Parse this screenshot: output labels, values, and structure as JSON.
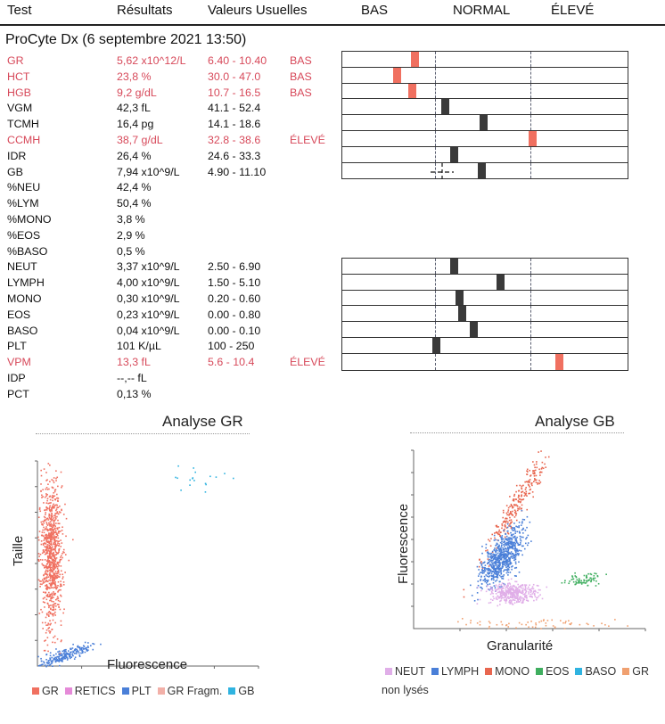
{
  "header": {
    "test": "Test",
    "results": "Résultats",
    "ranges": "Valeurs Usuelles",
    "low": "BAS",
    "normal": "NORMAL",
    "high": "ÉLEVÉ"
  },
  "device": "ProCyte Dx (6 septembre 2021 13:50)",
  "rows": [
    {
      "test": "GR",
      "result": "5,62 x10^12/L",
      "range": "6.40 - 10.40",
      "flag": "BAS",
      "gauge": 0.78,
      "abnormal": true
    },
    {
      "test": "HCT",
      "result": "23,8 %",
      "range": "30.0 - 47.0",
      "flag": "BAS",
      "gauge": 0.59,
      "abnormal": true
    },
    {
      "test": "HGB",
      "result": "9,2 g/dL",
      "range": "10.7 - 16.5",
      "flag": "BAS",
      "gauge": 0.75,
      "abnormal": true
    },
    {
      "test": "VGM",
      "result": "42,3 fL",
      "range": "41.1 - 52.4",
      "flag": "",
      "gauge": 1.1,
      "abnormal": false
    },
    {
      "test": "TCMH",
      "result": "16,4 pg",
      "range": "14.1 - 18.6",
      "flag": "",
      "gauge": 1.5,
      "abnormal": false
    },
    {
      "test": "CCMH",
      "result": "38,7 g/dL",
      "range": "32.8 - 38.6",
      "flag": "ÉLEVÉ",
      "gauge": 2.02,
      "abnormal": true
    },
    {
      "test": "IDR",
      "result": "26,4 %",
      "range": "24.6 - 33.3",
      "flag": "",
      "gauge": 1.2,
      "abnormal": false
    },
    {
      "test": "GB",
      "result": "7,94 x10^9/L",
      "range": "4.90 - 11.10",
      "flag": "",
      "gauge": 1.49,
      "abnormal": false
    },
    {
      "test": "%NEU",
      "result": "42,4 %",
      "range": "",
      "flag": ""
    },
    {
      "test": "%LYM",
      "result": "50,4 %",
      "range": "",
      "flag": ""
    },
    {
      "test": "%MONO",
      "result": "3,8 %",
      "range": "",
      "flag": ""
    },
    {
      "test": "%EOS",
      "result": "2,9 %",
      "range": "",
      "flag": ""
    },
    {
      "test": "%BASO",
      "result": "0,5 %",
      "range": "",
      "flag": ""
    },
    {
      "test": "NEUT",
      "result": "3,37 x10^9/L",
      "range": "2.50 - 6.90",
      "flag": "",
      "gauge": 1.2,
      "abnormal": false
    },
    {
      "test": "LYMPH",
      "result": "4,00 x10^9/L",
      "range": "1.50 - 5.10",
      "flag": "",
      "gauge": 1.68,
      "abnormal": false
    },
    {
      "test": "MONO",
      "result": "0,30 x10^9/L",
      "range": "0.20 - 0.60",
      "flag": "",
      "gauge": 1.25,
      "abnormal": false
    },
    {
      "test": "EOS",
      "result": "0,23 x10^9/L",
      "range": "0.00 - 0.80",
      "flag": "",
      "gauge": 1.28,
      "abnormal": false
    },
    {
      "test": "BASO",
      "result": "0,04 x10^9/L",
      "range": "0.00 - 0.10",
      "flag": "",
      "gauge": 1.4,
      "abnormal": false
    },
    {
      "test": "PLT",
      "result": "101 K/µL",
      "range": "100 - 250",
      "flag": "",
      "gauge": 1.01,
      "abnormal": false
    },
    {
      "test": "VPM",
      "result": "13,3 fL",
      "range": "5.6 - 10.4",
      "flag": "ÉLEVÉ",
      "gauge": 2.3,
      "abnormal": true
    },
    {
      "test": "IDP",
      "result": "--,--  fL",
      "range": "",
      "flag": ""
    },
    {
      "test": "PCT",
      "result": "0,13 %",
      "range": "",
      "flag": ""
    }
  ],
  "colors": {
    "abnormal_text": "#d7495a",
    "abnormal_mark": "#f07060",
    "normal_mark": "#3a3a3a"
  },
  "chart_data": [
    {
      "type": "scatter",
      "title": "Analyse GR",
      "xlabel": "Fluorescence",
      "ylabel": "Taille",
      "legend": [
        {
          "label": "GR",
          "color": "#f07060"
        },
        {
          "label": "RETICS",
          "color": "#e58ad8"
        },
        {
          "label": "PLT",
          "color": "#4a7fd8"
        },
        {
          "label": "GR Fragm.",
          "color": "#f2b0a8"
        },
        {
          "label": "GB",
          "color": "#2fb3e0"
        }
      ],
      "legend_position": "bottom",
      "clusters": [
        {
          "name": "GR",
          "color": "#f07060",
          "center": [
            0.06,
            0.55
          ],
          "spread": [
            0.025,
            0.18
          ],
          "n": 900
        },
        {
          "name": "PLT",
          "color": "#4a7fd8",
          "center": [
            0.12,
            0.06
          ],
          "spread": [
            0.06,
            0.03
          ],
          "n": 220
        },
        {
          "name": "GB",
          "color": "#2fb3e0",
          "center": [
            0.68,
            0.92
          ],
          "spread": [
            0.08,
            0.03
          ],
          "n": 18
        }
      ]
    },
    {
      "type": "scatter",
      "title": "Analyse GB",
      "xlabel": "Granularité",
      "ylabel": "Fluorescence",
      "legend": [
        {
          "label": "NEUT",
          "color": "#e0aee8"
        },
        {
          "label": "LYMPH",
          "color": "#4a7fd8"
        },
        {
          "label": "MONO",
          "color": "#e8664f"
        },
        {
          "label": "EOS",
          "color": "#3fae5f"
        },
        {
          "label": "BASO",
          "color": "#2fb3e0"
        },
        {
          "label": "GR non lysés",
          "color": "#f0a070"
        }
      ],
      "legend_position": "bottom",
      "clusters": [
        {
          "name": "MONO",
          "color": "#e8664f",
          "center": [
            0.45,
            0.72
          ],
          "spread": [
            0.04,
            0.17
          ],
          "n": 260
        },
        {
          "name": "LYMPH",
          "color": "#4a7fd8",
          "center": [
            0.38,
            0.4
          ],
          "spread": [
            0.035,
            0.08
          ],
          "n": 700
        },
        {
          "name": "NEUT",
          "color": "#e0aee8",
          "center": [
            0.42,
            0.2
          ],
          "spread": [
            0.05,
            0.03
          ],
          "n": 400
        },
        {
          "name": "EOS",
          "color": "#3fae5f",
          "center": [
            0.72,
            0.28
          ],
          "spread": [
            0.04,
            0.02
          ],
          "n": 70
        },
        {
          "name": "GR non lysés",
          "color": "#f0a070",
          "center": [
            0.5,
            0.03
          ],
          "spread": [
            0.18,
            0.015
          ],
          "n": 60
        }
      ]
    }
  ]
}
